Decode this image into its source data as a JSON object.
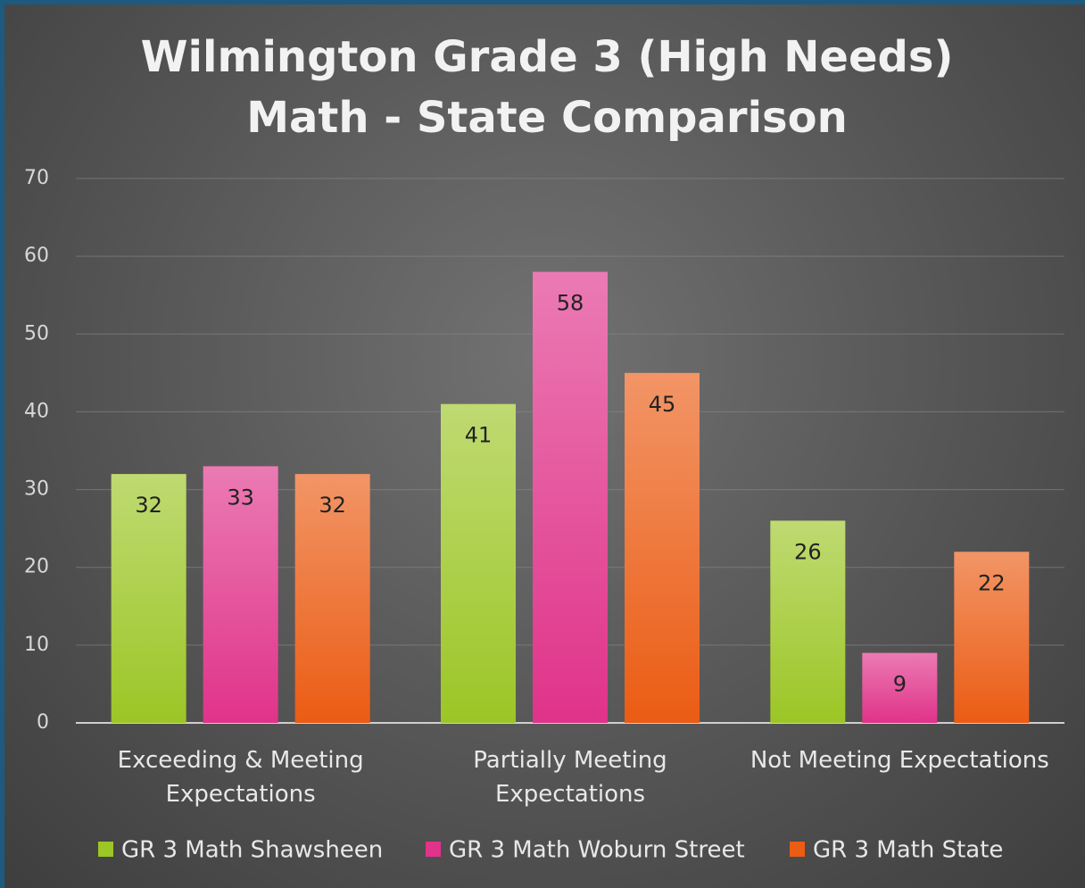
{
  "chart_data": {
    "type": "bar",
    "title": [
      "Wilmington Grade 3 (High Needs)",
      "Math - State Comparison"
    ],
    "categories": [
      "Exceeding & Meeting Expectations",
      "Partially Meeting Expectations",
      "Not Meeting Expectations"
    ],
    "series": [
      {
        "name": "GR 3 Math Shawsheen",
        "color": "#9cc626",
        "values": [
          32,
          41,
          26
        ]
      },
      {
        "name": "GR 3 Math Woburn Street",
        "color": "#e0338a",
        "values": [
          33,
          58,
          9
        ]
      },
      {
        "name": "GR 3 Math State",
        "color": "#eb5c14",
        "values": [
          32,
          45,
          22
        ]
      }
    ],
    "ylim": [
      0,
      70
    ],
    "yticks": [
      0,
      10,
      20,
      30,
      40,
      50,
      60,
      70
    ],
    "grid": true,
    "legend": "bottom"
  }
}
